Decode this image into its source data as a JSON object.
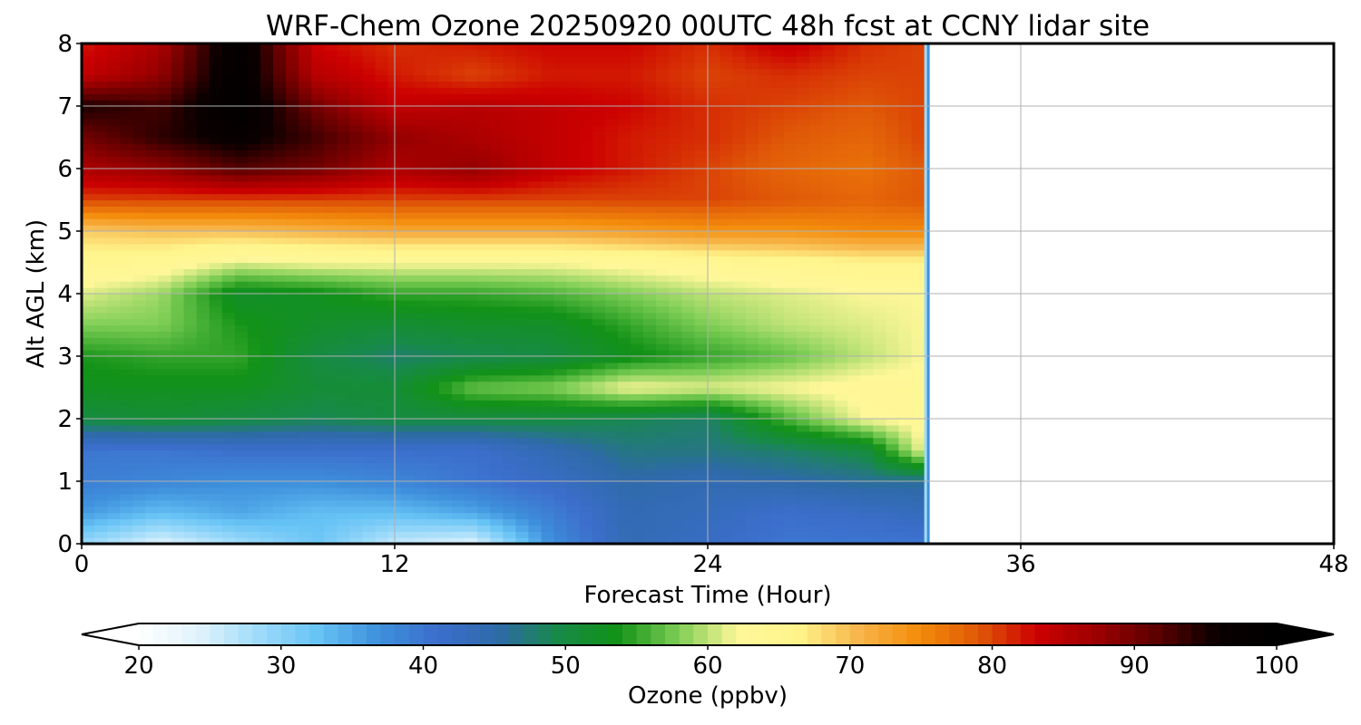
{
  "chart_data": {
    "type": "heatmap",
    "title": "WRF-Chem Ozone  20250920 00UTC 48h fcst at CCNY lidar site",
    "xlabel": "Forecast Time (Hour)",
    "ylabel": "Alt AGL (km)",
    "xlim": [
      0,
      48
    ],
    "ylim": [
      0,
      8
    ],
    "xticks": [
      "0",
      "12",
      "24",
      "36",
      "48"
    ],
    "yticks": [
      "0",
      "1",
      "2",
      "3",
      "4",
      "5",
      "6",
      "7",
      "8"
    ],
    "grid": true,
    "z_unit": "ppbv",
    "forecast_data_end_hour": 33,
    "x": [
      0,
      3,
      6,
      9,
      12,
      15,
      18,
      21,
      24,
      27,
      30,
      32.3
    ],
    "y": [
      0,
      0.5,
      1,
      1.5,
      2,
      2.5,
      3,
      3.5,
      4,
      4.5,
      5,
      5.5,
      6,
      6.5,
      7,
      7.5,
      8
    ],
    "z": [
      [
        29,
        24,
        28,
        32,
        26,
        24,
        37,
        44,
        42,
        40,
        40,
        40
      ],
      [
        36,
        33,
        35,
        33,
        33,
        35,
        39,
        44,
        43,
        41,
        42,
        43
      ],
      [
        39,
        38,
        37,
        37,
        38,
        40,
        42,
        45,
        44,
        45,
        46,
        46
      ],
      [
        40,
        40,
        41,
        41,
        41,
        41,
        44,
        47,
        47,
        48,
        50,
        62
      ],
      [
        50,
        51,
        50,
        49,
        50,
        50,
        50,
        49,
        48,
        56,
        62,
        63
      ],
      [
        53,
        53,
        53,
        51,
        51,
        57,
        58,
        62,
        61,
        62,
        63,
        63
      ],
      [
        54,
        55,
        55,
        50,
        48,
        49,
        50,
        53,
        55,
        57,
        60,
        62
      ],
      [
        58,
        58,
        54,
        52,
        51,
        52,
        52,
        55,
        58,
        60,
        61,
        62
      ],
      [
        61,
        59,
        52,
        53,
        55,
        55,
        56,
        58,
        60,
        61,
        62,
        62
      ],
      [
        65,
        64,
        61,
        62,
        62,
        62,
        62,
        63,
        64,
        65,
        66,
        66
      ],
      [
        69,
        70,
        70,
        71,
        72,
        72,
        72,
        73,
        74,
        74,
        75,
        75
      ],
      [
        80,
        80,
        80,
        80,
        80,
        80,
        80,
        80,
        80,
        79,
        78,
        79
      ],
      [
        86,
        88,
        92,
        90,
        86,
        88,
        84,
        82,
        80,
        78,
        77,
        79
      ],
      [
        90,
        94,
        97,
        93,
        88,
        86,
        84,
        82,
        81,
        79,
        78,
        80
      ],
      [
        95,
        93,
        99,
        90,
        84,
        85,
        84,
        83,
        81,
        80,
        79,
        80
      ],
      [
        84,
        88,
        99,
        85,
        82,
        80,
        82,
        82,
        80,
        81,
        80,
        80
      ],
      [
        82,
        86,
        99,
        83,
        81,
        82,
        83,
        83,
        81,
        84,
        81,
        80
      ]
    ]
  },
  "colorbar": {
    "label": "Ozone  (ppbv)",
    "min": 20,
    "max": 100,
    "step": 1,
    "extend": "both",
    "ticks": [
      "20",
      "30",
      "40",
      "50",
      "60",
      "70",
      "80",
      "90",
      "100"
    ],
    "colors": [
      "#ffffff",
      "#e0f3fc",
      "#9fdbfa",
      "#66c3f5",
      "#3e90dc",
      "#3c6ecc",
      "#2e6aa8",
      "#178a48",
      "#129217",
      "#7ccd54",
      "#fff799",
      "#fff58c",
      "#f7b74c",
      "#f48d0c",
      "#e05a08",
      "#cc0000",
      "#9c0000",
      "#5c0000",
      "#0a0000",
      "#000000"
    ]
  }
}
